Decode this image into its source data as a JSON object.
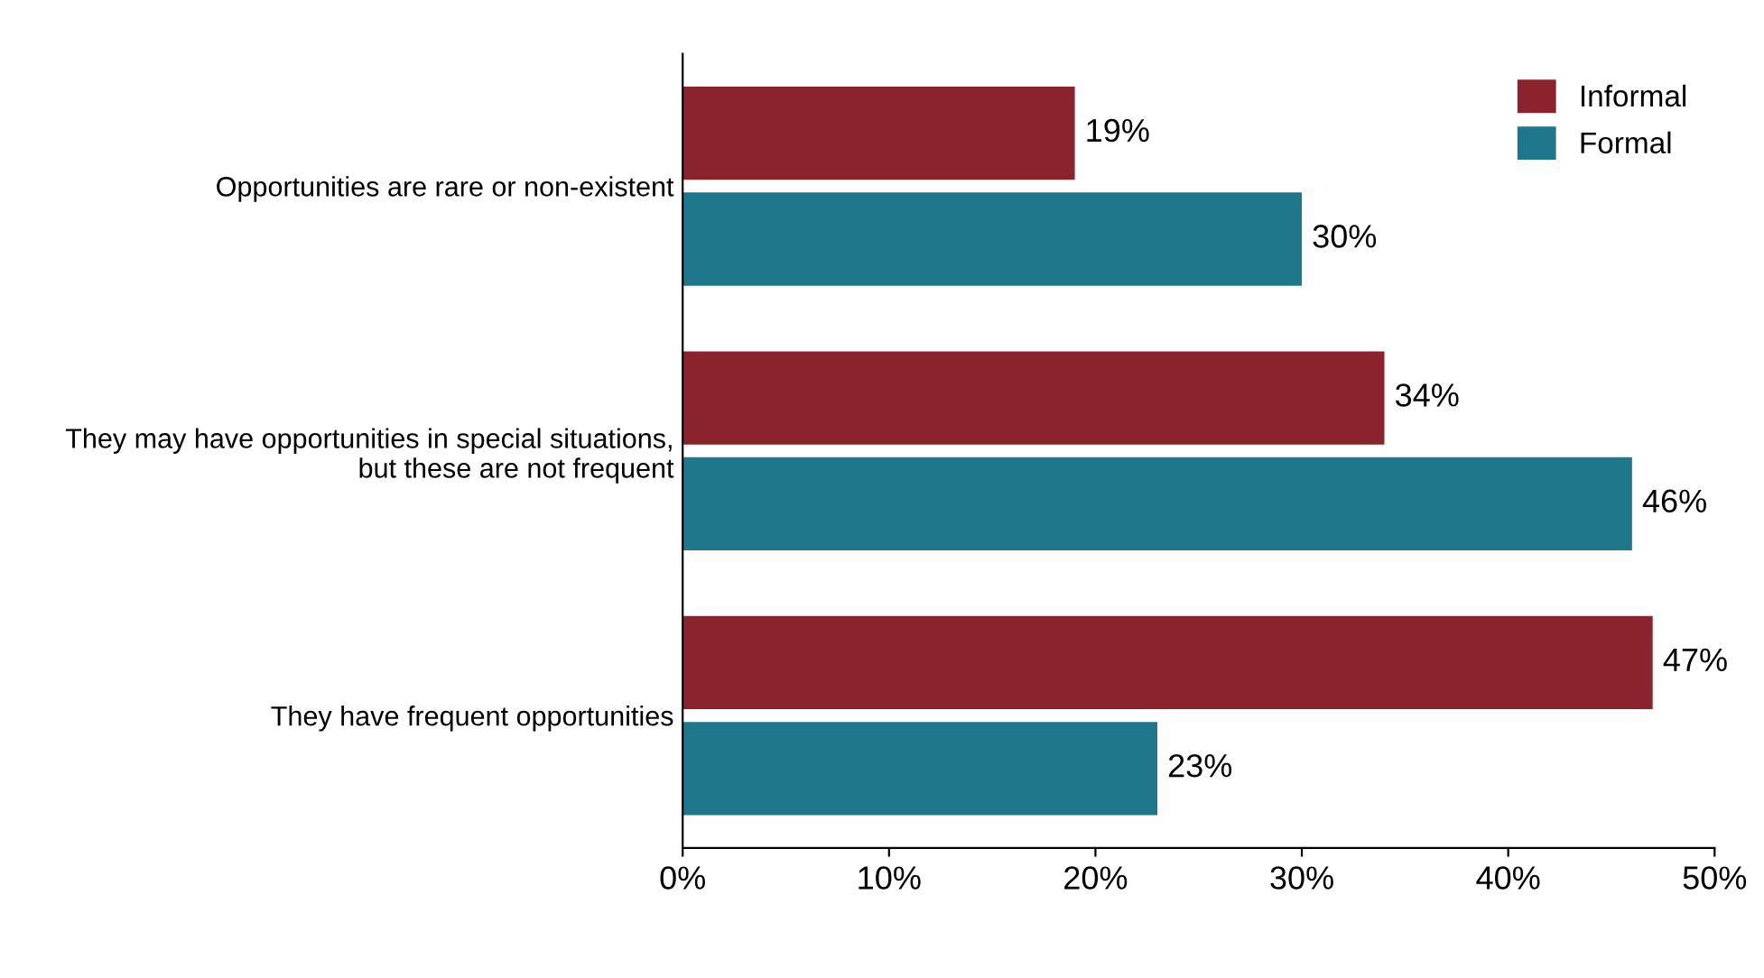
{
  "chart_data": {
    "type": "bar",
    "orientation": "horizontal",
    "categories": [
      "Opportunities are rare or non-existent",
      "They may have opportunities in special situations,\nbut these are not frequent",
      "They have frequent opportunities"
    ],
    "series": [
      {
        "name": "Informal",
        "color": "#8b232c",
        "values": [
          19,
          34,
          47
        ],
        "value_labels": [
          "19%",
          "34%",
          "47%"
        ]
      },
      {
        "name": "Formal",
        "color": "#1f778c",
        "values": [
          30,
          46,
          23
        ],
        "value_labels": [
          "30%",
          "46%",
          "23%"
        ]
      }
    ],
    "xlim": [
      0,
      50
    ],
    "xticks": [
      {
        "value": 0,
        "label": "0%"
      },
      {
        "value": 10,
        "label": "10%"
      },
      {
        "value": 20,
        "label": "20%"
      },
      {
        "value": 30,
        "label": "30%"
      },
      {
        "value": 40,
        "label": "40%"
      },
      {
        "value": 50,
        "label": "50%"
      }
    ],
    "grid": false,
    "legend": "top right"
  }
}
